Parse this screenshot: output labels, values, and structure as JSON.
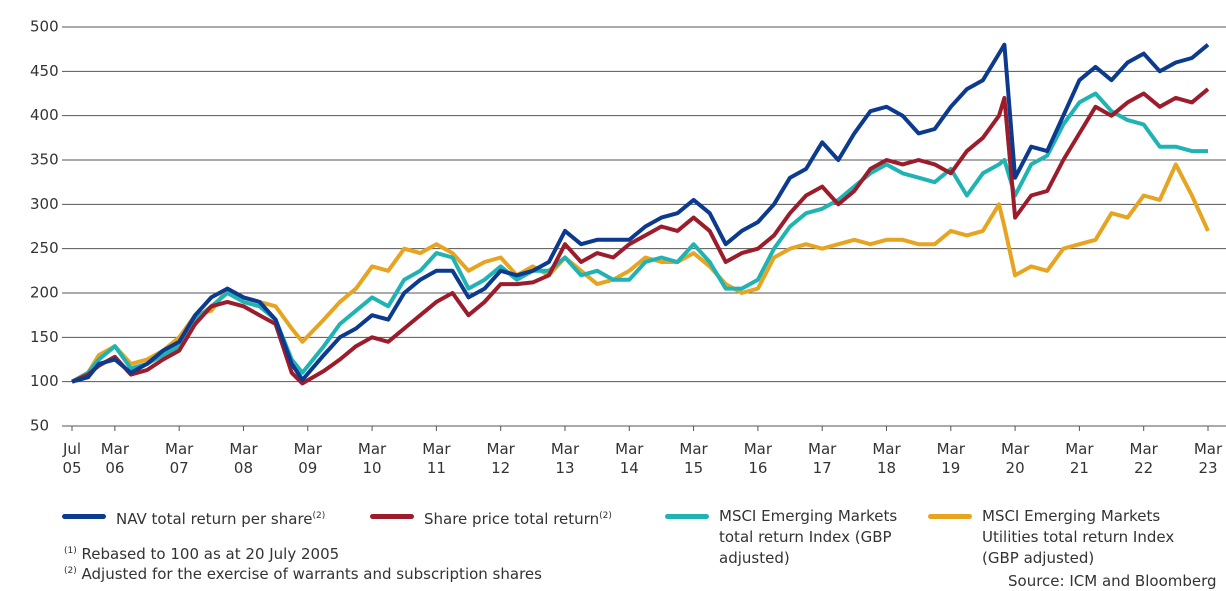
{
  "chart_data": {
    "type": "line",
    "x": [
      "2005-07",
      "2005-10",
      "2005-12",
      "2006-03",
      "2006-06",
      "2006-09",
      "2006-12",
      "2007-03",
      "2007-06",
      "2007-09",
      "2007-12",
      "2008-03",
      "2008-06",
      "2008-09",
      "2008-12",
      "2009-02",
      "2009-06",
      "2009-09",
      "2009-12",
      "2010-03",
      "2010-06",
      "2010-09",
      "2010-12",
      "2011-03",
      "2011-06",
      "2011-09",
      "2011-12",
      "2012-03",
      "2012-06",
      "2012-09",
      "2012-12",
      "2013-03",
      "2013-06",
      "2013-09",
      "2013-12",
      "2014-03",
      "2014-06",
      "2014-09",
      "2014-12",
      "2015-03",
      "2015-06",
      "2015-09",
      "2015-12",
      "2016-03",
      "2016-06",
      "2016-09",
      "2016-12",
      "2017-03",
      "2017-06",
      "2017-09",
      "2017-12",
      "2018-03",
      "2018-06",
      "2018-09",
      "2018-12",
      "2019-03",
      "2019-06",
      "2019-09",
      "2019-12",
      "2020-01",
      "2020-03",
      "2020-06",
      "2020-09",
      "2020-12",
      "2021-03",
      "2021-06",
      "2021-09",
      "2021-12",
      "2022-03",
      "2022-06",
      "2022-09",
      "2022-12",
      "2023-03"
    ],
    "series": [
      {
        "name": "NAV total return per share",
        "note": "(2)",
        "color": "#0b3a8e",
        "values": [
          100,
          105,
          120,
          125,
          110,
          120,
          135,
          145,
          175,
          195,
          205,
          195,
          190,
          170,
          120,
          102,
          130,
          150,
          160,
          175,
          170,
          200,
          215,
          225,
          225,
          195,
          205,
          225,
          220,
          225,
          235,
          270,
          255,
          260,
          260,
          260,
          275,
          285,
          290,
          305,
          290,
          255,
          270,
          280,
          300,
          330,
          340,
          370,
          350,
          380,
          405,
          410,
          400,
          380,
          385,
          410,
          430,
          440,
          470,
          480,
          330,
          365,
          360,
          400,
          440,
          455,
          440,
          460,
          470,
          450,
          460,
          465,
          480
        ]
      },
      {
        "name": "Share price total return",
        "note": "(2)",
        "color": "#9c1c2b",
        "values": [
          100,
          108,
          118,
          128,
          108,
          113,
          125,
          135,
          165,
          185,
          190,
          185,
          175,
          165,
          110,
          98,
          112,
          125,
          140,
          150,
          145,
          160,
          175,
          190,
          200,
          175,
          190,
          210,
          210,
          212,
          220,
          255,
          235,
          245,
          240,
          255,
          265,
          275,
          270,
          285,
          270,
          235,
          245,
          250,
          265,
          290,
          310,
          320,
          300,
          315,
          340,
          350,
          345,
          350,
          345,
          335,
          360,
          375,
          400,
          420,
          285,
          310,
          315,
          350,
          380,
          410,
          400,
          415,
          425,
          410,
          420,
          415,
          430
        ]
      },
      {
        "name": "MSCI Emerging Markets total return Index (GBP adjusted)",
        "color": "#1fb3b3",
        "values": [
          100,
          110,
          125,
          140,
          115,
          120,
          130,
          140,
          170,
          185,
          200,
          190,
          185,
          170,
          125,
          110,
          140,
          165,
          180,
          195,
          185,
          215,
          225,
          245,
          240,
          205,
          215,
          230,
          215,
          225,
          225,
          240,
          220,
          225,
          215,
          215,
          235,
          240,
          235,
          255,
          235,
          205,
          205,
          215,
          250,
          275,
          290,
          295,
          305,
          320,
          335,
          345,
          335,
          330,
          325,
          340,
          310,
          335,
          345,
          350,
          310,
          345,
          355,
          390,
          415,
          425,
          405,
          395,
          390,
          365,
          365,
          360,
          360
        ]
      },
      {
        "name": "MSCI Emerging Markets Utilities total return Index (GBP adjusted)",
        "color": "#e6a421",
        "values": [
          100,
          110,
          130,
          140,
          120,
          125,
          135,
          150,
          175,
          180,
          205,
          195,
          190,
          185,
          160,
          145,
          170,
          190,
          205,
          230,
          225,
          250,
          245,
          255,
          245,
          225,
          235,
          240,
          220,
          230,
          220,
          240,
          225,
          210,
          215,
          225,
          240,
          235,
          235,
          245,
          230,
          210,
          200,
          205,
          240,
          250,
          255,
          250,
          255,
          260,
          255,
          260,
          260,
          255,
          255,
          270,
          265,
          270,
          300,
          275,
          220,
          230,
          225,
          250,
          255,
          260,
          290,
          285,
          310,
          305,
          345,
          310,
          270
        ]
      }
    ],
    "xlim": [
      "2005-07",
      "2023-03"
    ],
    "xticks": [
      {
        "value": "2005-07",
        "label": "Jul 05"
      },
      {
        "value": "2006-03",
        "label": "Mar 06"
      },
      {
        "value": "2007-03",
        "label": "Mar 07"
      },
      {
        "value": "2008-03",
        "label": "Mar 08"
      },
      {
        "value": "2009-03",
        "label": "Mar 09"
      },
      {
        "value": "2010-03",
        "label": "Mar 10"
      },
      {
        "value": "2011-03",
        "label": "Mar 11"
      },
      {
        "value": "2012-03",
        "label": "Mar 12"
      },
      {
        "value": "2013-03",
        "label": "Mar 13"
      },
      {
        "value": "2014-03",
        "label": "Mar 14"
      },
      {
        "value": "2015-03",
        "label": "Mar 15"
      },
      {
        "value": "2016-03",
        "label": "Mar 16"
      },
      {
        "value": "2017-03",
        "label": "Mar 17"
      },
      {
        "value": "2018-03",
        "label": "Mar 18"
      },
      {
        "value": "2019-03",
        "label": "Mar 19"
      },
      {
        "value": "2020-03",
        "label": "Mar 20"
      },
      {
        "value": "2021-03",
        "label": "Mar 21"
      },
      {
        "value": "2022-03",
        "label": "Mar 22"
      },
      {
        "value": "2023-03",
        "label": "Mar 23"
      }
    ],
    "ylim": [
      50,
      500
    ],
    "yticks": [
      50,
      100,
      150,
      200,
      250,
      300,
      350,
      400,
      450,
      500
    ],
    "grid": true,
    "footnotes": [
      {
        "marker": "(1)",
        "text": "Rebased to 100 as at 20 July 2005"
      },
      {
        "marker": "(2)",
        "text": "Adjusted for the exercise of warrants and subscription shares"
      }
    ],
    "source": "Source: ICM and Bloomberg"
  }
}
